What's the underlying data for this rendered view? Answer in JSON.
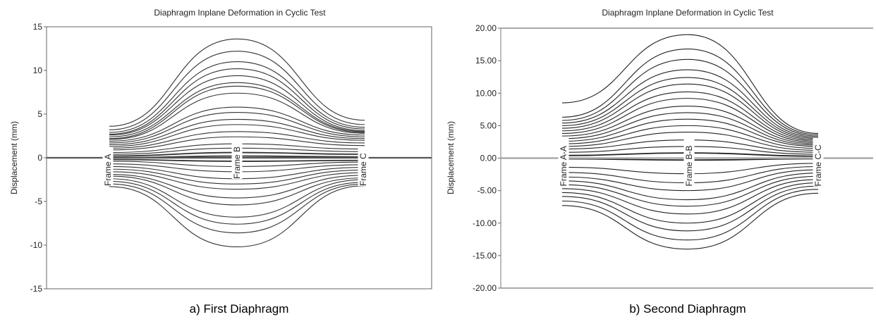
{
  "figure": {
    "caption_a": "a) First Diaphragm",
    "caption_b": "b) Second Diaphragm"
  },
  "chart_data": [
    {
      "type": "line",
      "title": "Diaphragm Inplane Deformation in Cyclic Test",
      "xlabel": "",
      "ylabel": "Displacement (mm)",
      "ylim": [
        -15,
        15
      ],
      "y_ticks": [
        "15",
        "10",
        "5",
        "0",
        "-5",
        "-10",
        "-15"
      ],
      "grid": false,
      "frame_labels": [
        "Frame A",
        "Frame B",
        "Frame C"
      ],
      "x": [
        "Frame A",
        "Frame B",
        "Frame C"
      ],
      "series": [
        {
          "values": [
            3.6,
            13.6,
            4.3
          ]
        },
        {
          "values": [
            3.2,
            12.2,
            3.8
          ]
        },
        {
          "values": [
            2.9,
            11.0,
            3.5
          ]
        },
        {
          "values": [
            2.7,
            10.2,
            3.3
          ]
        },
        {
          "values": [
            2.6,
            9.4,
            3.1
          ]
        },
        {
          "values": [
            2.4,
            8.6,
            3.0
          ]
        },
        {
          "values": [
            2.2,
            8.2,
            2.9
          ]
        },
        {
          "values": [
            2.1,
            7.4,
            2.8
          ]
        },
        {
          "values": [
            1.9,
            5.8,
            2.6
          ]
        },
        {
          "values": [
            1.7,
            5.2,
            2.4
          ]
        },
        {
          "values": [
            1.5,
            4.4,
            2.2
          ]
        },
        {
          "values": [
            1.3,
            3.8,
            2.0
          ]
        },
        {
          "values": [
            1.1,
            3.0,
            1.7
          ]
        },
        {
          "values": [
            0.9,
            2.4,
            1.4
          ]
        },
        {
          "values": [
            0.6,
            1.6,
            1.0
          ]
        },
        {
          "values": [
            0.4,
            1.1,
            0.7
          ]
        },
        {
          "values": [
            0.2,
            0.6,
            0.4
          ]
        },
        {
          "values": [
            0.0,
            0.2,
            0.1
          ]
        },
        {
          "values": [
            -0.2,
            -0.4,
            -0.3
          ]
        },
        {
          "values": [
            -0.4,
            -1.0,
            -0.5
          ]
        },
        {
          "values": [
            -0.7,
            -1.6,
            -0.8
          ]
        },
        {
          "values": [
            -1.0,
            -2.4,
            -1.1
          ]
        },
        {
          "values": [
            -1.3,
            -3.0,
            -1.4
          ]
        },
        {
          "values": [
            -1.6,
            -3.6,
            -1.7
          ]
        },
        {
          "values": [
            -1.9,
            -4.6,
            -2.0
          ]
        },
        {
          "values": [
            -2.1,
            -5.4,
            -2.3
          ]
        },
        {
          "values": [
            -2.4,
            -6.8,
            -2.5
          ]
        },
        {
          "values": [
            -2.7,
            -7.6,
            -2.8
          ]
        },
        {
          "values": [
            -3.0,
            -8.6,
            -3.0
          ]
        },
        {
          "values": [
            -3.3,
            -10.2,
            -3.2
          ]
        }
      ]
    },
    {
      "type": "line",
      "title": "Diaphragm Inplane Deformation in Cyclic Test",
      "xlabel": "",
      "ylabel": "Displacement (mm)",
      "ylim": [
        -20,
        20
      ],
      "y_ticks": [
        "20.00",
        "15.00",
        "10.00",
        "5.00",
        "0.00",
        "-5.00",
        "-10.00",
        "-15.00",
        "-20.00"
      ],
      "grid": false,
      "frame_labels": [
        "Frame A-A",
        "Frame B-B",
        "Frame C-C"
      ],
      "x": [
        "Frame A-A",
        "Frame B-B",
        "Frame C-C"
      ],
      "series": [
        {
          "values": [
            8.5,
            19.0,
            3.8
          ]
        },
        {
          "values": [
            6.3,
            16.8,
            3.6
          ]
        },
        {
          "values": [
            5.8,
            15.2,
            3.4
          ]
        },
        {
          "values": [
            5.4,
            13.6,
            3.2
          ]
        },
        {
          "values": [
            5.0,
            12.4,
            3.0
          ]
        },
        {
          "values": [
            4.6,
            11.4,
            2.8
          ]
        },
        {
          "values": [
            4.2,
            10.2,
            2.6
          ]
        },
        {
          "values": [
            3.8,
            9.2,
            2.4
          ]
        },
        {
          "values": [
            3.4,
            8.0,
            2.2
          ]
        },
        {
          "values": [
            3.0,
            7.0,
            2.0
          ]
        },
        {
          "values": [
            2.6,
            6.0,
            1.8
          ]
        },
        {
          "values": [
            2.2,
            5.0,
            1.5
          ]
        },
        {
          "values": [
            1.8,
            4.0,
            1.2
          ]
        },
        {
          "values": [
            1.4,
            2.8,
            0.9
          ]
        },
        {
          "values": [
            0.9,
            1.8,
            0.6
          ]
        },
        {
          "values": [
            0.4,
            0.8,
            0.3
          ]
        },
        {
          "values": [
            -0.1,
            -0.3,
            -0.1
          ]
        },
        {
          "values": [
            -1.4,
            -2.4,
            -0.8
          ]
        },
        {
          "values": [
            -2.2,
            -3.8,
            -1.3
          ]
        },
        {
          "values": [
            -2.9,
            -5.0,
            -1.8
          ]
        },
        {
          "values": [
            -3.5,
            -6.4,
            -2.3
          ]
        },
        {
          "values": [
            -4.1,
            -7.4,
            -2.8
          ]
        },
        {
          "values": [
            -4.7,
            -8.6,
            -3.3
          ]
        },
        {
          "values": [
            -5.3,
            -10.0,
            -3.8
          ]
        },
        {
          "values": [
            -5.9,
            -11.2,
            -4.3
          ]
        },
        {
          "values": [
            -6.6,
            -12.6,
            -4.8
          ]
        },
        {
          "values": [
            -7.3,
            -14.0,
            -5.4
          ]
        }
      ]
    }
  ]
}
